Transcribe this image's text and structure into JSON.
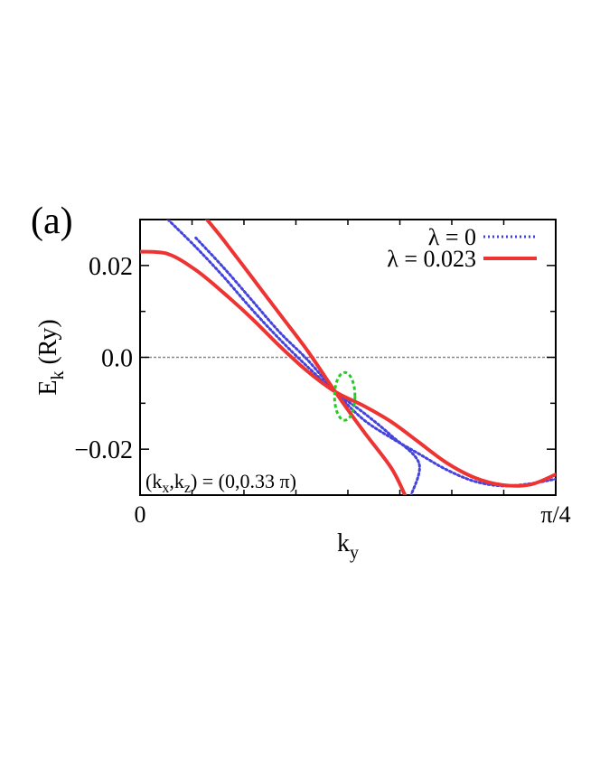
{
  "panel_label": "(a)",
  "chart_data": {
    "type": "line",
    "title": "",
    "xlabel": {
      "main": "k",
      "sub": "y"
    },
    "ylabel": {
      "main": "E",
      "sub": "k",
      "unit": "(Ry)"
    },
    "xlim": [
      0,
      0.7853982
    ],
    "ylim": [
      -0.03,
      0.03
    ],
    "x_ticks": [
      {
        "value": 0,
        "label": "0"
      },
      {
        "value": 0.7853982,
        "label": "π/4"
      }
    ],
    "y_ticks": [
      {
        "value": 0.02,
        "label": "0.02"
      },
      {
        "value": 0.0,
        "label": "0.0"
      },
      {
        "value": -0.02,
        "label": "−0.02"
      }
    ],
    "y_minor_ticks": [
      0.03,
      0.02,
      0.01,
      0.0,
      -0.01,
      -0.02,
      -0.03
    ],
    "x_minor_ticks": [
      0.0982,
      0.1963,
      0.2945,
      0.3927,
      0.4909,
      0.589,
      0.6872
    ],
    "reference_line": {
      "y": 0.0,
      "color": "#888888",
      "style": "dotted"
    },
    "annotation": "(kx,kz) = (0,0.33 π)",
    "annotation_parts": [
      "(k",
      "x",
      ",k",
      "z",
      ") = (0,0.33 π)"
    ],
    "highlight_ellipse": {
      "x": 0.3868,
      "y": -0.0085,
      "rx": 0.0193,
      "ry": 0.0052,
      "color": "#22cc22"
    },
    "legend": {
      "position": "top-right"
    },
    "series": [
      {
        "name": "λ = 0",
        "color": "#4444dd",
        "style": "dotted",
        "points": [
          [
            0.0527,
            0.03
          ],
          [
            0.1054,
            0.024
          ],
          [
            0.1581,
            0.0175
          ],
          [
            0.2108,
            0.0105
          ],
          [
            0.2634,
            0.004
          ],
          [
            0.3161,
            -0.002
          ],
          [
            0.3688,
            -0.0075
          ],
          [
            0.4215,
            -0.012
          ],
          [
            0.4742,
            -0.017
          ],
          [
            0.5269,
            -0.023
          ],
          [
            0.5123,
            -0.03
          ]
        ]
      },
      {
        "name": "λ = 0",
        "color": "#4444dd",
        "style": "dotted",
        "points": [
          [
            0.1054,
            0.026
          ],
          [
            0.1581,
            0.0195
          ],
          [
            0.2108,
            0.0125
          ],
          [
            0.2634,
            0.0055
          ],
          [
            0.3161,
            -0.0005
          ],
          [
            0.3688,
            -0.0075
          ],
          [
            0.4215,
            -0.0135
          ],
          [
            0.4742,
            -0.0175
          ],
          [
            0.5269,
            -0.021
          ],
          [
            0.5796,
            -0.0245
          ],
          [
            0.6322,
            -0.027
          ],
          [
            0.6849,
            -0.028
          ],
          [
            0.7376,
            -0.0275
          ],
          [
            0.7853,
            -0.0265
          ]
        ]
      },
      {
        "name": "λ = 0.023",
        "color": "#ee3333",
        "style": "solid",
        "points": [
          [
            0.0,
            0.023
          ],
          [
            0.0527,
            0.0225
          ],
          [
            0.1054,
            0.019
          ],
          [
            0.1581,
            0.014
          ],
          [
            0.2108,
            0.0085
          ],
          [
            0.2634,
            0.0025
          ],
          [
            0.3161,
            -0.003
          ],
          [
            0.3688,
            -0.0075
          ],
          [
            0.4215,
            -0.0105
          ],
          [
            0.4742,
            -0.014
          ],
          [
            0.5269,
            -0.0185
          ],
          [
            0.5796,
            -0.023
          ],
          [
            0.6322,
            -0.0262
          ],
          [
            0.6849,
            -0.0278
          ],
          [
            0.7376,
            -0.0277
          ],
          [
            0.7853,
            -0.0255
          ]
        ]
      },
      {
        "name": "λ = 0.023",
        "color": "#ee3333",
        "style": "solid",
        "points": [
          [
            0.1264,
            0.03
          ],
          [
            0.1581,
            0.0255
          ],
          [
            0.2108,
            0.0175
          ],
          [
            0.2634,
            0.0095
          ],
          [
            0.3161,
            0.0015
          ],
          [
            0.3688,
            -0.0075
          ],
          [
            0.4215,
            -0.016
          ],
          [
            0.4742,
            -0.024
          ],
          [
            0.5006,
            -0.03
          ]
        ]
      }
    ],
    "legend_entries": [
      {
        "label": "λ = 0",
        "color": "#4444dd",
        "style": "dotted"
      },
      {
        "label": "λ = 0.023",
        "color": "#ee3333",
        "style": "solid"
      }
    ]
  }
}
